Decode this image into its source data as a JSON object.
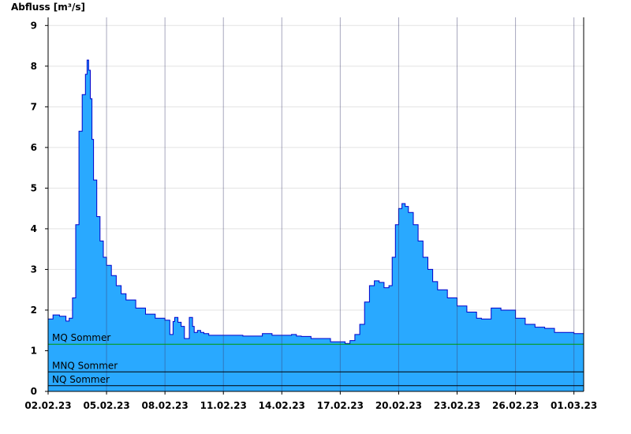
{
  "chart_data": {
    "type": "area",
    "title": "",
    "ylabel": "Abfluss [m³/s]",
    "xlabel": "",
    "ylim": [
      0,
      9.2
    ],
    "yticks": [
      0,
      1,
      2,
      3,
      4,
      5,
      6,
      7,
      8,
      9
    ],
    "xlim": [
      "02.02.23",
      "01.03.23 12:00"
    ],
    "xtick_labels": [
      "02.02.23",
      "05.02.23",
      "08.02.23",
      "11.02.23",
      "14.02.23",
      "17.02.23",
      "20.02.23",
      "23.02.23",
      "26.02.23",
      "01.03.23"
    ],
    "grid": true,
    "fill_color": "#29a9ff",
    "line_color": "#0000cc",
    "series": [
      {
        "x": [
          "02.02.23 00:00",
          "02.02.23 06:00",
          "02.02.23 14:00",
          "02.02.23 22:00",
          "03.02.23 02:00",
          "03.02.23 06:00",
          "03.02.23 10:00",
          "03.02.23 14:00",
          "03.02.23 18:00",
          "03.02.23 22:00",
          "04.02.23 00:00",
          "04.02.23 02:00",
          "04.02.23 04:00",
          "04.02.23 06:00",
          "04.02.23 08:00",
          "04.02.23 12:00",
          "04.02.23 16:00",
          "04.02.23 20:00",
          "05.02.23 00:00",
          "05.02.23 06:00",
          "05.02.23 12:00",
          "05.02.23 18:00",
          "06.02.23 00:00",
          "06.02.23 12:00",
          "07.02.23 00:00",
          "07.02.23 12:00",
          "08.02.23 00:00",
          "08.02.23 06:00",
          "08.02.23 10:00",
          "08.02.23 12:00",
          "08.02.23 16:00",
          "08.02.23 20:00",
          "09.02.23 00:00",
          "09.02.23 06:00",
          "09.02.23 10:00",
          "09.02.23 12:00",
          "09.02.23 16:00",
          "09.02.23 20:00",
          "10.02.23 00:00",
          "10.02.23 06:00",
          "10.02.23 12:00",
          "10.02.23 18:00",
          "11.02.23 00:00",
          "11.02.23 12:00",
          "12.02.23 00:00",
          "12.02.23 12:00",
          "13.02.23 00:00",
          "13.02.23 12:00",
          "14.02.23 00:00",
          "14.02.23 12:00",
          "14.02.23 18:00",
          "15.02.23 00:00",
          "15.02.23 12:00",
          "16.02.23 00:00",
          "16.02.23 12:00",
          "17.02.23 00:00",
          "17.02.23 06:00",
          "17.02.23 12:00",
          "17.02.23 18:00",
          "18.02.23 00:00",
          "18.02.23 06:00",
          "18.02.23 12:00",
          "18.02.23 18:00",
          "19.02.23 00:00",
          "19.02.23 06:00",
          "19.02.23 12:00",
          "19.02.23 16:00",
          "19.02.23 20:00",
          "20.02.23 00:00",
          "20.02.23 04:00",
          "20.02.23 08:00",
          "20.02.23 12:00",
          "20.02.23 18:00",
          "21.02.23 00:00",
          "21.02.23 06:00",
          "21.02.23 12:00",
          "21.02.23 18:00",
          "22.02.23 00:00",
          "22.02.23 12:00",
          "23.02.23 00:00",
          "23.02.23 12:00",
          "24.02.23 00:00",
          "24.02.23 06:00",
          "24.02.23 12:00",
          "24.02.23 18:00",
          "25.02.23 00:00",
          "25.02.23 06:00",
          "25.02.23 12:00",
          "26.02.23 00:00",
          "26.02.23 12:00",
          "27.02.23 00:00",
          "27.02.23 12:00",
          "28.02.23 00:00",
          "28.02.23 12:00",
          "01.03.23 00:00",
          "01.03.23 12:00"
        ],
        "y": [
          1.78,
          1.88,
          1.85,
          1.73,
          1.8,
          2.3,
          4.1,
          6.4,
          7.3,
          7.8,
          8.15,
          7.9,
          7.2,
          6.2,
          5.2,
          4.3,
          3.7,
          3.3,
          3.1,
          2.85,
          2.6,
          2.4,
          2.25,
          2.05,
          1.9,
          1.8,
          1.75,
          1.4,
          1.72,
          1.82,
          1.7,
          1.6,
          1.3,
          1.82,
          1.6,
          1.45,
          1.5,
          1.45,
          1.42,
          1.38,
          1.38,
          1.38,
          1.38,
          1.38,
          1.36,
          1.36,
          1.42,
          1.38,
          1.38,
          1.4,
          1.36,
          1.35,
          1.3,
          1.3,
          1.22,
          1.22,
          1.18,
          1.25,
          1.4,
          1.65,
          2.2,
          2.6,
          2.72,
          2.68,
          2.55,
          2.6,
          3.3,
          4.1,
          4.5,
          4.62,
          4.55,
          4.4,
          4.1,
          3.7,
          3.3,
          3.0,
          2.7,
          2.5,
          2.3,
          2.1,
          1.95,
          1.8,
          1.78,
          1.78,
          2.05,
          2.05,
          2.0,
          2.0,
          1.8,
          1.65,
          1.58,
          1.55,
          1.45,
          1.45,
          1.42,
          1.38
        ]
      }
    ],
    "reference_lines": [
      {
        "name": "MQ Sommer",
        "y": 1.16,
        "color": "#009900"
      },
      {
        "name": "MNQ Sommer",
        "y": 0.48,
        "color": "#000000"
      },
      {
        "name": "NQ Sommer",
        "y": 0.14,
        "color": "#000000"
      }
    ]
  }
}
